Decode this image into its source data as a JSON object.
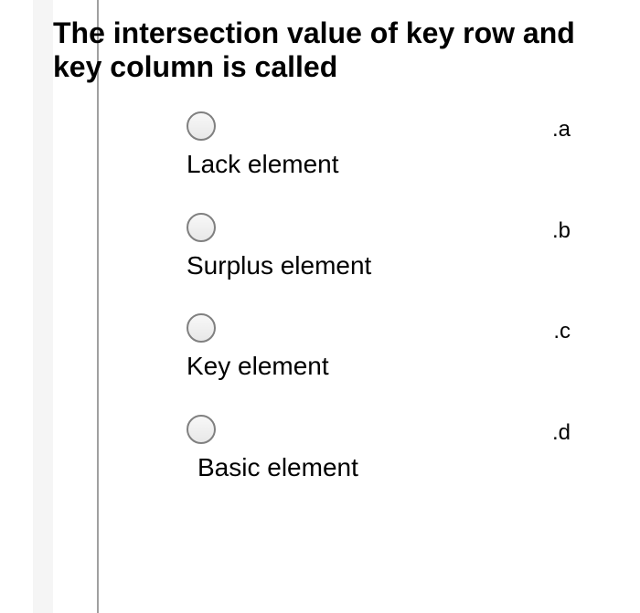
{
  "question": {
    "title": "The intersection value of key row and key column is called"
  },
  "options": [
    {
      "label": "Lack element",
      "letter": ".a"
    },
    {
      "label": "Surplus element",
      "letter": ".b"
    },
    {
      "label": "Key element",
      "letter": ".c"
    },
    {
      "label": "Basic element",
      "letter": ".d"
    }
  ],
  "colors": {
    "background": "#ffffff",
    "gutter": "#f5f5f5",
    "divider": "#a0a0a0",
    "text": "#000000",
    "radio_border": "#808080"
  }
}
